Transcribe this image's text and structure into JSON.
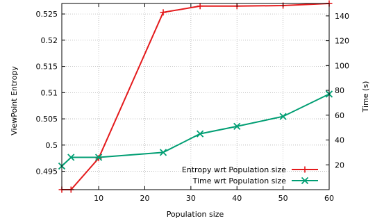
{
  "chart_data": {
    "type": "line",
    "xlabel": "Population size",
    "ylabel_left": "ViewPoint Entropy",
    "ylabel_right": "Time (s)",
    "xlim": [
      2,
      60
    ],
    "ylim_left": [
      0.4915,
      0.527
    ],
    "ylim_right": [
      0,
      150
    ],
    "x_ticks": [
      10,
      20,
      30,
      40,
      50,
      60
    ],
    "y_ticks_left": [
      "0.495",
      "0.5",
      "0.505",
      "0.51",
      "0.515",
      "0.52",
      "0.525"
    ],
    "y_ticks_right": [
      20,
      40,
      60,
      80,
      100,
      120,
      140
    ],
    "grid": true,
    "legend_position": "bottom-right",
    "series": [
      {
        "name": "Entropy wrt Population size",
        "axis": "left",
        "color": "#e41a1c",
        "marker": "plus",
        "x": [
          2,
          4,
          10,
          24,
          32,
          40,
          50,
          60
        ],
        "y": [
          0.4915,
          0.4915,
          0.4975,
          0.5253,
          0.5265,
          0.5265,
          0.5266,
          0.527
        ]
      },
      {
        "name": "Time wrt Population size",
        "axis": "right",
        "color": "#009e73",
        "marker": "cross",
        "x": [
          2,
          4,
          10,
          24,
          32,
          40,
          50,
          60
        ],
        "y": [
          19,
          26,
          26,
          30,
          45,
          51,
          59,
          77
        ]
      }
    ]
  }
}
